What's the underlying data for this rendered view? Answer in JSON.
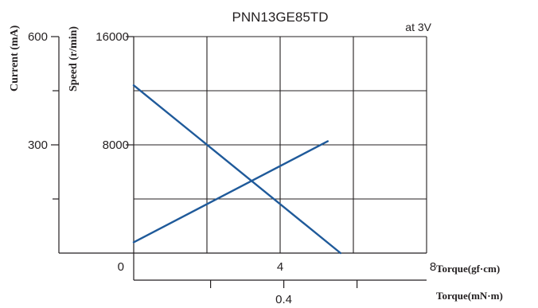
{
  "chart_data": {
    "type": "line",
    "title": "PNN13GE85TD",
    "note": "at 3V",
    "x_axis": {
      "label": "Torque(gf·cm)",
      "range": [
        0,
        8
      ],
      "ticks": [
        "0",
        "4",
        "8"
      ],
      "grid_at": [
        2,
        4,
        6,
        8
      ]
    },
    "x2_axis": {
      "label": "Torque(mN·m)",
      "ticks": [
        "0.4"
      ],
      "minor_ticks_gfcm": [
        2.1,
        4.1,
        6.1
      ]
    },
    "y_speed_axis": {
      "label": "Speed (r/min)",
      "range": [
        0,
        16000
      ],
      "ticks": [
        "8000",
        "16000"
      ],
      "grid_at": [
        4000,
        8000,
        12000,
        16000
      ]
    },
    "y_current_axis": {
      "label": "Current (mA)",
      "range": [
        0,
        600
      ],
      "ticks": [
        "300",
        "600"
      ],
      "minor_at": [
        150,
        450
      ]
    },
    "series": [
      {
        "x": [
          0,
          5.65
        ],
        "y_speed": [
          12400,
          0
        ]
      },
      {
        "x": [
          0,
          5.3
        ],
        "y_current": [
          30,
          310
        ]
      }
    ],
    "colors": {
      "series": "#1f5a9a",
      "axes": "#231f20"
    },
    "grid": true
  }
}
